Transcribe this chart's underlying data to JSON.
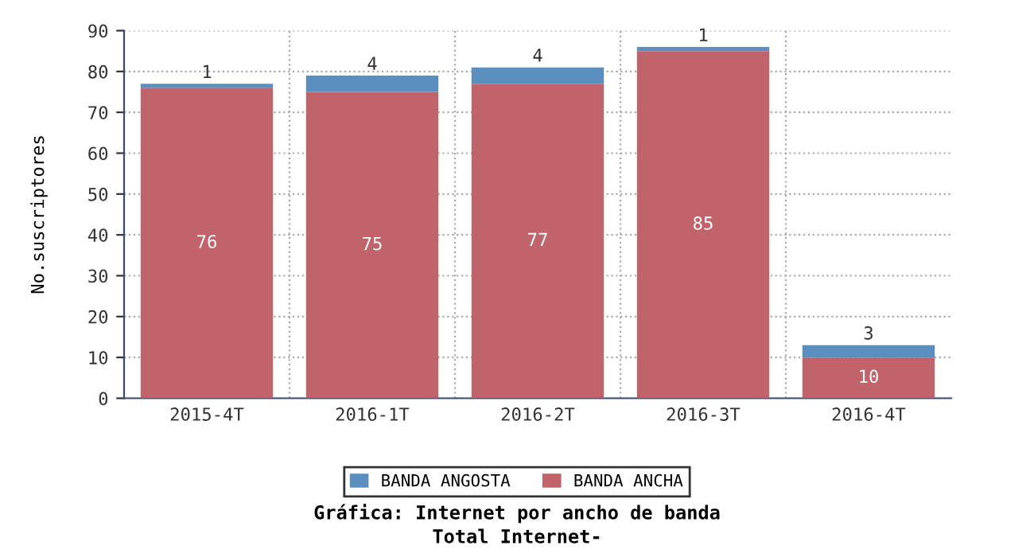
{
  "chart_data": {
    "type": "bar",
    "stacked": true,
    "title": "Gráfica: Internet por ancho de banda",
    "subtitle": "Total Internet-",
    "ylabel": "No.suscriptores",
    "categories": [
      "2015-4T",
      "2016-1T",
      "2016-2T",
      "2016-3T",
      "2016-4T"
    ],
    "series": [
      {
        "name": "BANDA ANCHA",
        "color": "#c0636b",
        "values": [
          76,
          75,
          77,
          85,
          10
        ]
      },
      {
        "name": "BANDA ANGOSTA",
        "color": "#5b8fc0",
        "values": [
          1,
          4,
          4,
          1,
          3
        ]
      }
    ],
    "ylim": [
      0,
      90
    ],
    "yticks": [
      0,
      10,
      20,
      30,
      40,
      50,
      60,
      70,
      80,
      90
    ],
    "grid": true,
    "legend": "bottom",
    "data_labels": true
  }
}
